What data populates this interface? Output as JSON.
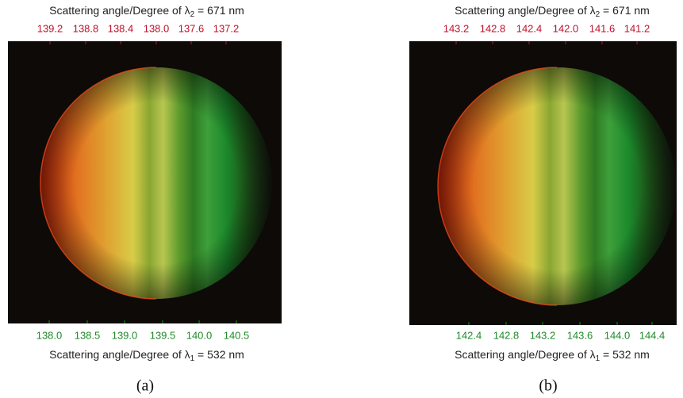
{
  "panels": [
    {
      "top_axis": {
        "label": {
          "text": "Scattering angle/Degree of λ",
          "subscript": "2",
          "suffix": " = 671 nm"
        },
        "ticks": [
          "139.2",
          "138.8",
          "138.4",
          "138.0",
          "137.6",
          "137.2"
        ]
      },
      "bottom_axis": {
        "label": {
          "text": "Scattering angle/Degree of λ",
          "subscript": "1",
          "suffix": " = 532 nm"
        },
        "ticks": [
          "138.0",
          "138.5",
          "139.0",
          "139.5",
          "140.0",
          "140.5"
        ]
      },
      "caption": "(a)"
    },
    {
      "top_axis": {
        "label": {
          "text": "Scattering angle/Degree of λ",
          "subscript": "2",
          "suffix": " = 671 nm"
        },
        "ticks": [
          "143.2",
          "142.8",
          "142.4",
          "142.0",
          "141.6",
          "141.2"
        ]
      },
      "bottom_axis": {
        "label": {
          "text": "Scattering angle/Degree of λ",
          "subscript": "1",
          "suffix": " = 532 nm"
        },
        "ticks": [
          "142.4",
          "142.8",
          "143.2",
          "143.6",
          "144.0",
          "144.4"
        ]
      },
      "caption": "(b)"
    }
  ]
}
